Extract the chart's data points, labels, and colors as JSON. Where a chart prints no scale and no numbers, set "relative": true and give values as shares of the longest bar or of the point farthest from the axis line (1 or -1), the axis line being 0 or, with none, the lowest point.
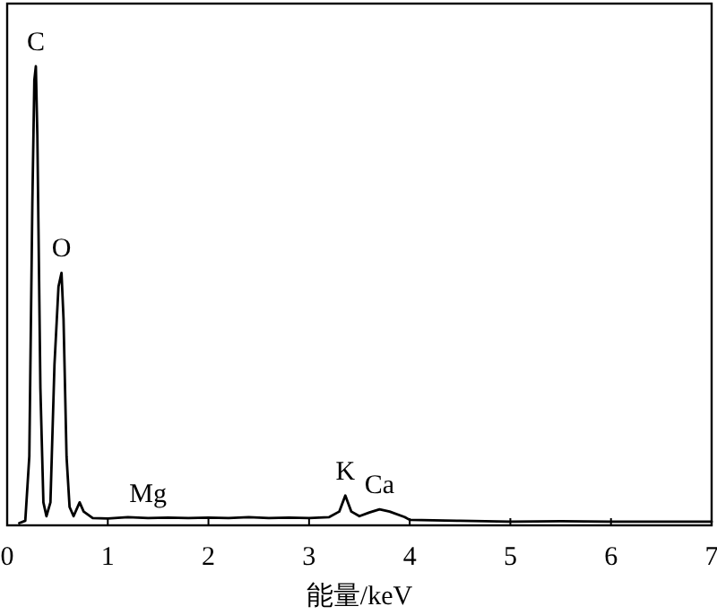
{
  "chart_data": {
    "type": "line",
    "xlabel": "能量/keV",
    "relative": true,
    "xlim": [
      0,
      7
    ],
    "xticks": [
      0,
      1,
      2,
      3,
      4,
      5,
      6,
      7
    ],
    "tick_labels": "x",
    "color": "#000000",
    "x": [
      0.12,
      0.18,
      0.22,
      0.25,
      0.27,
      0.285,
      0.3,
      0.33,
      0.36,
      0.39,
      0.43,
      0.47,
      0.51,
      0.54,
      0.56,
      0.59,
      0.62,
      0.66,
      0.72,
      0.76,
      0.85,
      1.0,
      1.2,
      1.4,
      1.6,
      1.8,
      2.0,
      2.2,
      2.4,
      2.6,
      2.8,
      3.0,
      3.2,
      3.3,
      3.36,
      3.42,
      3.5,
      3.6,
      3.7,
      3.8,
      3.95,
      4.0,
      4.5,
      5.0,
      5.5,
      6.0,
      6.5,
      7.0
    ],
    "values": [
      0.005,
      0.01,
      0.15,
      0.7,
      0.97,
      1.0,
      0.85,
      0.3,
      0.05,
      0.02,
      0.05,
      0.35,
      0.52,
      0.55,
      0.45,
      0.15,
      0.04,
      0.02,
      0.05,
      0.03,
      0.016,
      0.015,
      0.018,
      0.016,
      0.017,
      0.016,
      0.017,
      0.016,
      0.018,
      0.016,
      0.017,
      0.016,
      0.018,
      0.03,
      0.065,
      0.03,
      0.02,
      0.028,
      0.035,
      0.03,
      0.018,
      0.012,
      0.01,
      0.008,
      0.009,
      0.008,
      0.008,
      0.008
    ],
    "annotations": [
      {
        "text": "C",
        "x": 0.285,
        "y": 1.0
      },
      {
        "text": "O",
        "x": 0.54,
        "y": 0.55
      },
      {
        "text": "Mg",
        "x": 1.4,
        "y": 0.016
      },
      {
        "text": "K",
        "x": 3.36,
        "y": 0.065
      },
      {
        "text": "Ca",
        "x": 3.7,
        "y": 0.035
      }
    ]
  }
}
